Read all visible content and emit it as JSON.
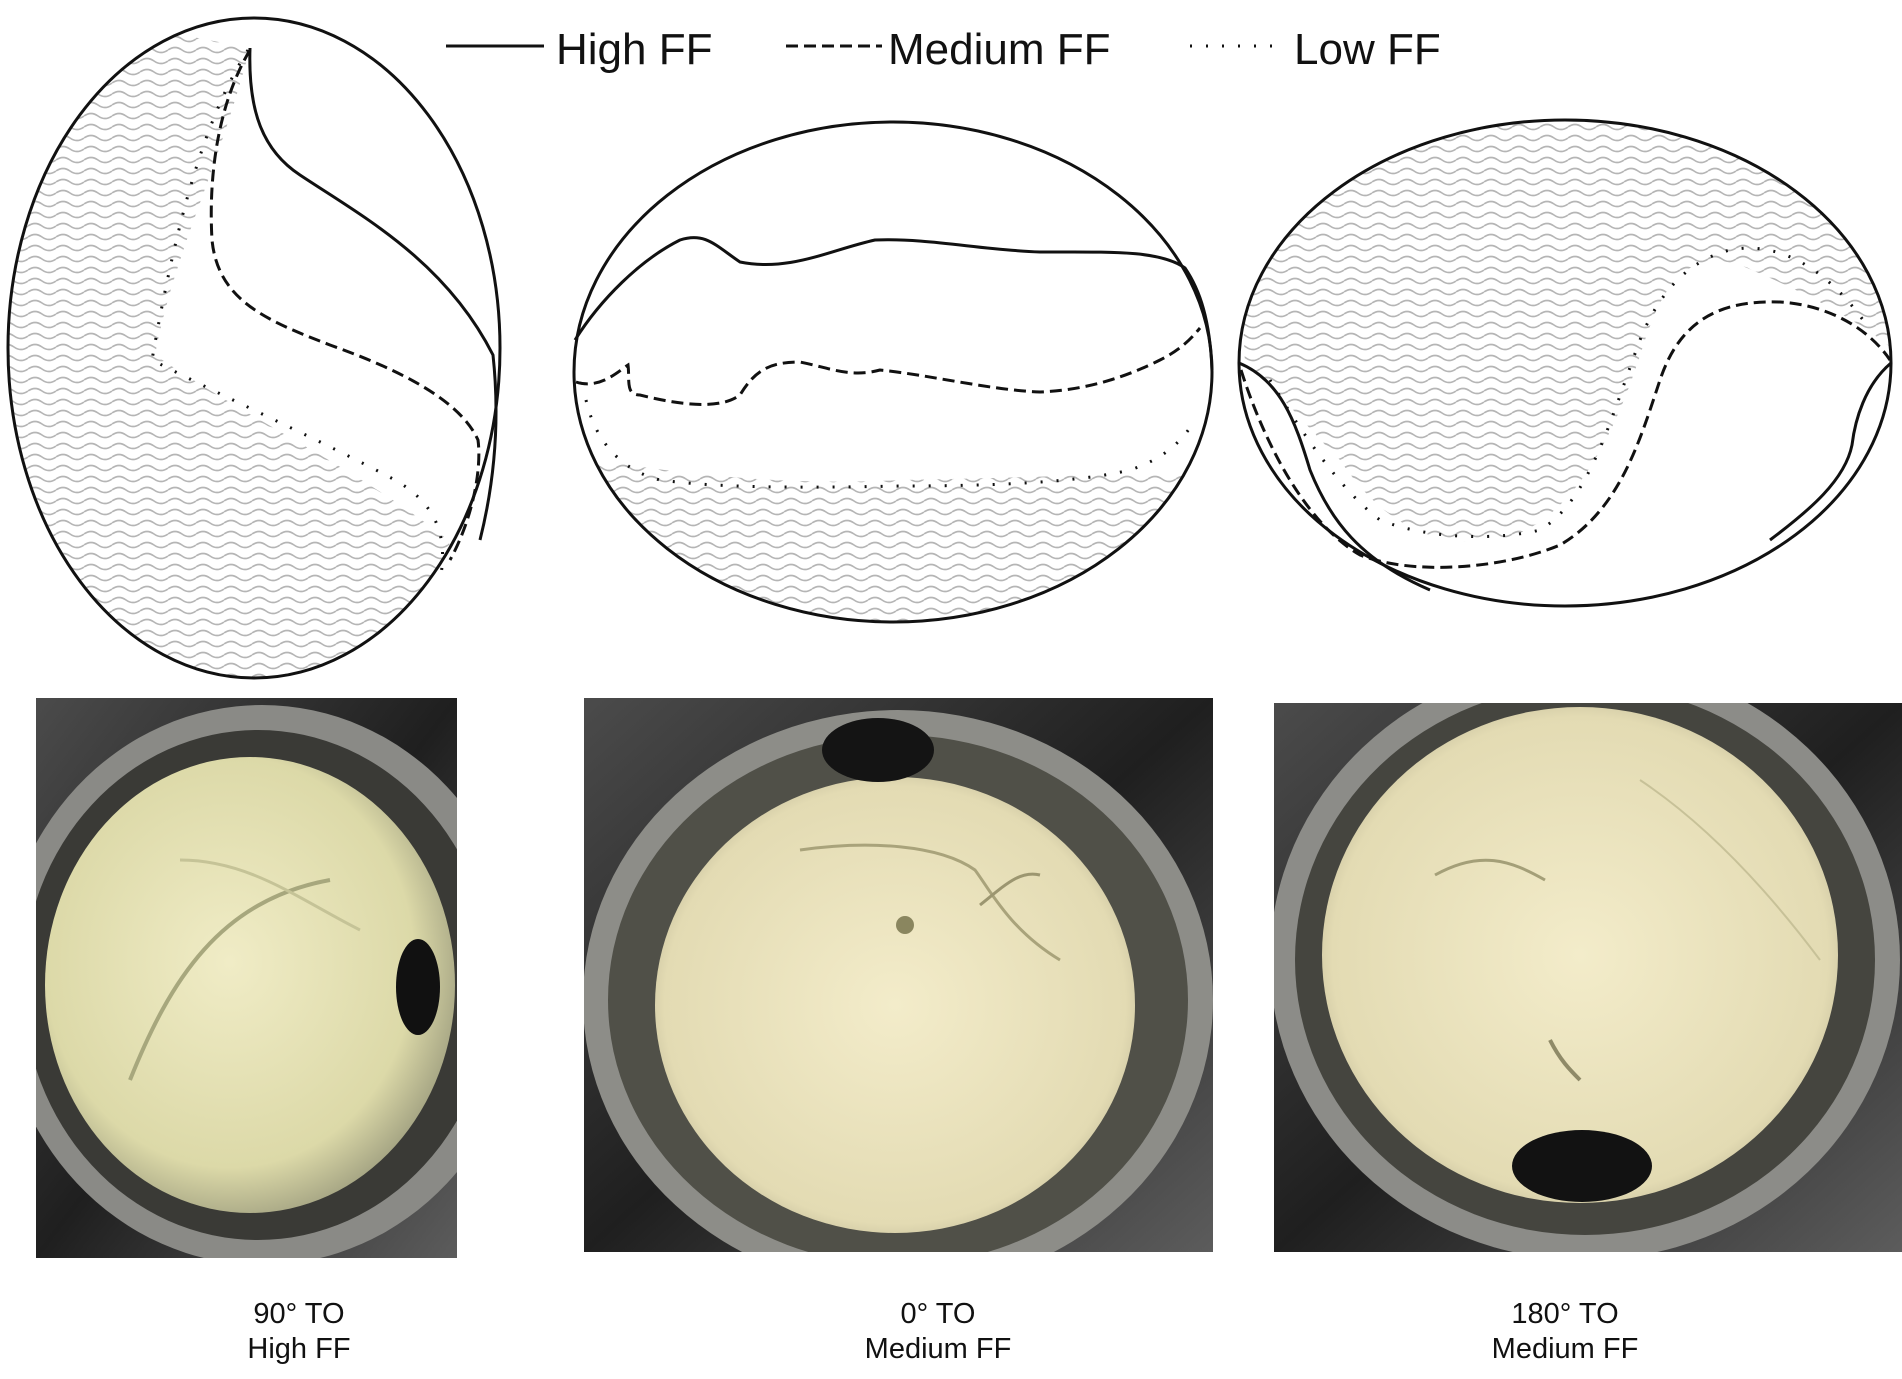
{
  "legend": {
    "items": [
      {
        "label": "High FF",
        "style": "solid"
      },
      {
        "label": "Medium FF",
        "style": "dashed"
      },
      {
        "label": "Low FF",
        "style": "dotted"
      }
    ]
  },
  "panels": [
    {
      "orientation": "90° TO",
      "fill_fraction": "High FF",
      "opening_icon": "dark-oval-port"
    },
    {
      "orientation": "0° TO",
      "fill_fraction": "Medium FF",
      "opening_icon": "dark-oval-port"
    },
    {
      "orientation": "180° TO",
      "fill_fraction": "Medium FF",
      "opening_icon": "dark-oval-port"
    }
  ],
  "colors": {
    "line": "#111111",
    "liquid_hatch": "#b5b5b5",
    "photo_fluid": "#e6e2b8",
    "photo_frame": "#2a2a2a"
  }
}
